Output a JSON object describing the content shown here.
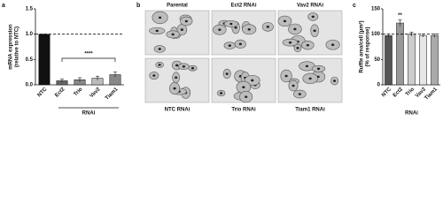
{
  "chart_data": [
    {
      "type": "bar",
      "panel_label": "a",
      "ylabel": [
        "mRNA expression",
        "(relative to NTC)"
      ],
      "xlabel": "RNAi",
      "categories": [
        "NTC",
        "Ect2",
        "Trio",
        "Vav2",
        "Tiam1"
      ],
      "values": [
        1.0,
        0.08,
        0.1,
        0.13,
        0.2
      ],
      "errors": [
        0,
        0.03,
        0.04,
        0.04,
        0.05
      ],
      "colors": [
        "#111111",
        "#666666",
        "#888888",
        "#bbbbbb",
        "#888888"
      ],
      "ylim": [
        0,
        1.5
      ],
      "yticks": [
        {
          "value": 0,
          "label": "0.0"
        },
        {
          "value": 0.5,
          "label": "0.5"
        },
        {
          "value": 1,
          "label": "1.0"
        },
        {
          "value": 1.5,
          "label": "1.5"
        }
      ],
      "reference_line": 1,
      "annotation": "****"
    },
    {
      "type": "bar",
      "panel_label": "c",
      "ylabel": [
        "Ruffle area/cell (μm²)",
        "(% of response)"
      ],
      "xlabel": "RNAi",
      "categories": [
        "NTC",
        "Ect2",
        "Trio",
        "Vav2",
        "Tiam1"
      ],
      "values": [
        97,
        122,
        100,
        97,
        97
      ],
      "errors": [
        3,
        6,
        4,
        3,
        3
      ],
      "colors": [
        "#555555",
        "#999999",
        "#cccccc",
        "#e6e6e6",
        "#aaaaaa"
      ],
      "ylim": [
        0,
        150
      ],
      "yticks": [
        0,
        50,
        100,
        150
      ],
      "reference_line": 100,
      "annotation": "**"
    }
  ],
  "image_panel": {
    "panel_label": "b",
    "labels": [
      "Parental",
      "Ect2 RNAi",
      "Vav2 RNAi",
      "NTC RNAi",
      "Trio RNAi",
      "Tiam1 RNAi"
    ]
  }
}
